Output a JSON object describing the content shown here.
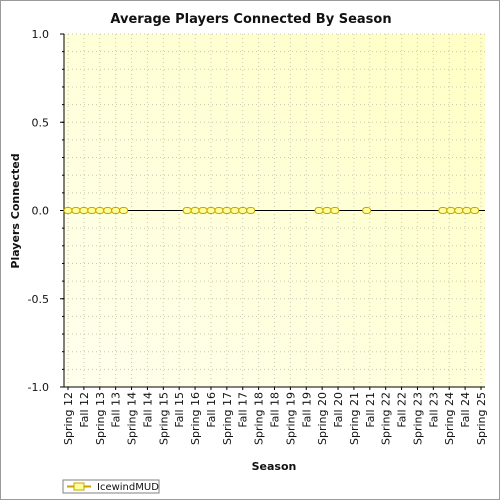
{
  "chart_data": {
    "type": "line",
    "title": "Average Players Connected By Season",
    "xlabel": "Season",
    "ylabel": "Players Connected",
    "ylim": [
      -1.0,
      1.0
    ],
    "yticks": [
      "1.0",
      "0.5",
      "0.0",
      "-0.5",
      "-1.0"
    ],
    "categories": [
      "Spring 12",
      "Fall 12",
      "Spring 13",
      "Fall 13",
      "Spring 14",
      "Fall 14",
      "Spring 15",
      "Fall 15",
      "Spring 16",
      "Fall 16",
      "Spring 17",
      "Fall 17",
      "Spring 18",
      "Fall 18",
      "Spring 19",
      "Fall 19",
      "Spring 20",
      "Fall 20",
      "Spring 21",
      "Fall 21",
      "Spring 22",
      "Fall 22",
      "Spring 23",
      "Fall 23",
      "Spring 24",
      "Fall 24",
      "Spring 25"
    ],
    "grid": true,
    "legend_position": "bottom-left",
    "series": [
      {
        "name": "IcewindMUD",
        "color": "#c8a400",
        "fill": "#ffff99",
        "points": [
          {
            "x": 0,
            "y": 0.0
          },
          {
            "x": 0.5,
            "y": 0.0
          },
          {
            "x": 1,
            "y": 0.0
          },
          {
            "x": 1.5,
            "y": 0.0
          },
          {
            "x": 2,
            "y": 0.0
          },
          {
            "x": 2.5,
            "y": 0.0
          },
          {
            "x": 3,
            "y": 0.0
          },
          {
            "x": 3.5,
            "y": 0.0
          },
          {
            "x": 7.5,
            "y": 0.0
          },
          {
            "x": 8,
            "y": 0.0
          },
          {
            "x": 8.5,
            "y": 0.0
          },
          {
            "x": 9,
            "y": 0.0
          },
          {
            "x": 9.5,
            "y": 0.0
          },
          {
            "x": 10,
            "y": 0.0
          },
          {
            "x": 10.5,
            "y": 0.0
          },
          {
            "x": 11,
            "y": 0.0
          },
          {
            "x": 11.5,
            "y": 0.0
          },
          {
            "x": 15.8,
            "y": 0.0
          },
          {
            "x": 16.3,
            "y": 0.0
          },
          {
            "x": 16.8,
            "y": 0.0
          },
          {
            "x": 18.8,
            "y": 0.0
          },
          {
            "x": 23.6,
            "y": 0.0
          },
          {
            "x": 24.1,
            "y": 0.0
          },
          {
            "x": 24.6,
            "y": 0.0
          },
          {
            "x": 25.1,
            "y": 0.0
          },
          {
            "x": 25.6,
            "y": 0.0
          }
        ]
      }
    ]
  },
  "colors": {
    "plot_gradient_start": "#ffffee",
    "plot_gradient_end": "#ffffcc",
    "grid": "#c8c8b0",
    "axis": "#000000"
  }
}
